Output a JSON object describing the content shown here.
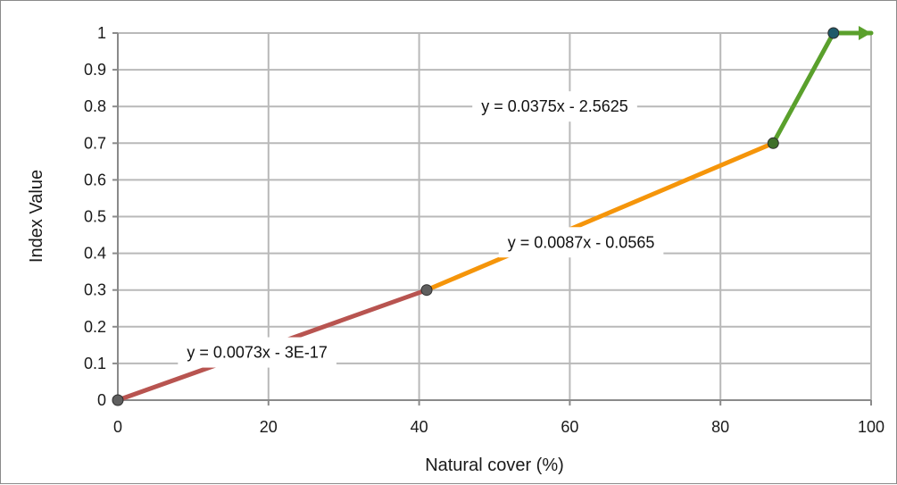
{
  "chart_data": {
    "type": "line",
    "title": "",
    "xlabel": "Natural cover (%)",
    "ylabel": "Index Value",
    "xlim": [
      0,
      100
    ],
    "ylim": [
      0,
      1
    ],
    "x_ticks": [
      0,
      20,
      40,
      60,
      80,
      100
    ],
    "y_ticks": [
      0,
      0.1,
      0.2,
      0.3,
      0.4,
      0.5,
      0.6,
      0.7,
      0.8,
      0.9,
      1
    ],
    "x_tick_labels": [
      "0",
      "20",
      "40",
      "60",
      "80",
      "100"
    ],
    "y_tick_labels": [
      "0",
      "0.1",
      "0.2",
      "0.3",
      "0.4",
      "0.5",
      "0.6",
      "0.7",
      "0.8",
      "0.9",
      "1"
    ],
    "grid": true,
    "legend": "none",
    "series": [
      {
        "x": [
          0,
          41
        ],
        "y": [
          0,
          0.3
        ],
        "color": "#b85450"
      },
      {
        "x": [
          41,
          87
        ],
        "y": [
          0.3,
          0.7
        ],
        "color": "#f5950a"
      },
      {
        "x": [
          87,
          95
        ],
        "y": [
          0.7,
          1.0
        ],
        "color": "#5aa02c"
      },
      {
        "x": [
          95,
          100
        ],
        "y": [
          1.0,
          1.0
        ],
        "color": "#5aa02c",
        "arrow": true
      }
    ],
    "points": [
      {
        "x": 0,
        "y": 0,
        "color": "#5f5f5f"
      },
      {
        "x": 41,
        "y": 0.3,
        "color": "#5f5f5f"
      },
      {
        "x": 87,
        "y": 0.7,
        "color": "#3f6f2a"
      },
      {
        "x": 95,
        "y": 1.0,
        "color": "#1f5a6a"
      }
    ],
    "annotations": [
      {
        "text": "y = 0.0073x - 3E-17",
        "x": 18.5,
        "y": 0.13
      },
      {
        "text": "y = 0.0087x - 0.0565",
        "x": 61.5,
        "y": 0.43
      },
      {
        "text": "y = 0.0375x - 2.5625",
        "x": 58,
        "y": 0.8
      }
    ]
  }
}
